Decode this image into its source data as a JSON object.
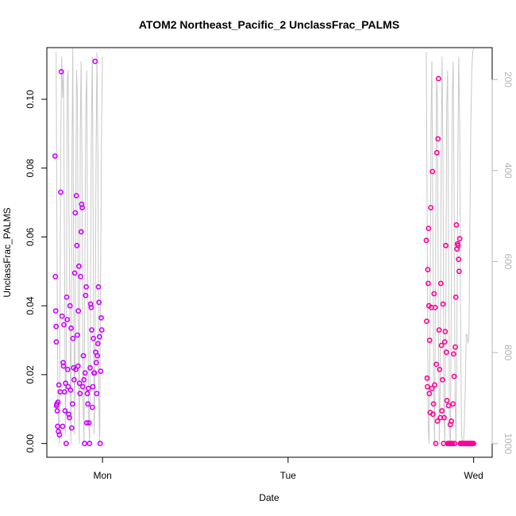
{
  "chart_data": {
    "type": "scatter",
    "title": "ATOM2 Northeast_Pacific_2 UnclassFrac_PALMS",
    "xlabel": "Date",
    "ylabel": "UnclassFrac_PALMS",
    "x_ticks": [
      "Mon",
      "Tue",
      "Wed"
    ],
    "x_tick_days": [
      0,
      1,
      2
    ],
    "xlim_days": [
      -0.3,
      2.1
    ],
    "ylim": [
      -0.004,
      0.115
    ],
    "y_ticks": [
      0.0,
      0.02,
      0.04,
      0.06,
      0.08,
      0.1
    ],
    "y_tick_labels": [
      "0.00",
      "0.02",
      "0.04",
      "0.06",
      "0.08",
      "0.10"
    ],
    "y2_ticks": [
      200,
      400,
      600,
      800,
      1000
    ],
    "y2_tick_labels": [
      "200",
      "400",
      "600",
      "800",
      "1000"
    ],
    "y2lim": [
      1030,
      130
    ],
    "grid": false,
    "colors": {
      "marker_primary": "#cc00ff",
      "marker_secondary": "#ff0099",
      "pressure_line": "#c8c8c8",
      "axis": "#000000",
      "secondary_axis": "#b4b4b4"
    },
    "series": [
      {
        "marker": "circle",
        "color": "#cc00ff",
        "x_days": [
          -0.256,
          -0.254,
          -0.252,
          -0.25,
          -0.249,
          -0.248,
          -0.246,
          -0.244,
          -0.242,
          -0.24,
          -0.238,
          -0.235,
          -0.232,
          -0.228,
          -0.225,
          -0.222,
          -0.218,
          -0.215,
          -0.212,
          -0.21,
          -0.208,
          -0.205,
          -0.202,
          -0.199,
          -0.196,
          -0.193,
          -0.19,
          -0.188,
          -0.185,
          -0.182,
          -0.178,
          -0.175,
          -0.172,
          -0.169,
          -0.166,
          -0.162,
          -0.159,
          -0.156,
          -0.153,
          -0.15,
          -0.147,
          -0.144,
          -0.141,
          -0.138,
          -0.135,
          -0.132,
          -0.13,
          -0.127,
          -0.124,
          -0.121,
          -0.118,
          -0.115,
          -0.112,
          -0.109,
          -0.106,
          -0.103,
          -0.1,
          -0.097,
          -0.094,
          -0.091,
          -0.088,
          -0.085,
          -0.082,
          -0.079,
          -0.076,
          -0.073,
          -0.07,
          -0.067,
          -0.064,
          -0.061,
          -0.058,
          -0.055,
          -0.052,
          -0.049,
          -0.046,
          -0.043,
          -0.04,
          -0.037,
          -0.034,
          -0.031,
          -0.028,
          -0.025,
          -0.022,
          -0.019,
          -0.016,
          -0.013,
          -0.01,
          -0.007,
          -0.004
        ],
        "y": [
          0.0835,
          0.0485,
          0.0385,
          0.034,
          0.0295,
          0.011,
          0.0115,
          0.0095,
          0.005,
          0.012,
          0.0035,
          0.017,
          0.0025,
          0.015,
          0.073,
          0.108,
          0.037,
          0.005,
          0.0235,
          0.0225,
          0.0345,
          0.015,
          0.0095,
          0.0175,
          0.0,
          0.0425,
          0.036,
          0.0215,
          0.0165,
          0.0085,
          0.0075,
          0.04,
          0.0155,
          0.0335,
          0.0045,
          0.0115,
          0.0305,
          0.022,
          0.0185,
          0.0495,
          0.067,
          0.0215,
          0.072,
          0.0575,
          0.0315,
          0.0225,
          0.0385,
          0.0515,
          0.0175,
          0.0145,
          0.0485,
          0.0615,
          0.0695,
          0.0685,
          0.0165,
          0.0255,
          0.0185,
          0.0,
          0.0205,
          0.043,
          0.0455,
          0.006,
          0.0145,
          0.0115,
          0.016,
          0.006,
          0.0,
          0.022,
          0.0405,
          0.0395,
          0.033,
          0.0105,
          0.0165,
          0.0305,
          0.0205,
          0.0205,
          0.111,
          0.0265,
          0.0235,
          0.0145,
          0.0255,
          0.029,
          0.0455,
          0.041,
          0.031,
          0.0,
          0.021,
          0.0365,
          0.033
        ]
      },
      {
        "marker": "circle",
        "color": "#ff0099",
        "x_days": [
          1.745,
          1.747,
          1.749,
          1.751,
          1.753,
          1.755,
          1.757,
          1.759,
          1.761,
          1.763,
          1.766,
          1.769,
          1.772,
          1.775,
          1.778,
          1.781,
          1.784,
          1.787,
          1.79,
          1.793,
          1.796,
          1.799,
          1.802,
          1.805,
          1.808,
          1.811,
          1.814,
          1.817,
          1.82,
          1.823,
          1.826,
          1.829,
          1.832,
          1.835,
          1.838,
          1.841,
          1.844,
          1.847,
          1.85,
          1.853,
          1.856,
          1.859,
          1.862,
          1.865,
          1.868,
          1.871,
          1.874,
          1.877,
          1.88,
          1.883,
          1.886,
          1.889,
          1.892,
          1.895,
          1.898,
          1.901,
          1.904,
          1.907,
          1.91,
          1.913,
          1.916,
          1.919,
          1.922,
          1.925,
          1.928,
          1.931,
          1.934,
          1.937,
          1.94,
          1.943,
          1.946,
          1.949,
          1.952,
          1.955,
          1.958,
          1.961,
          1.964,
          1.967,
          1.97,
          1.973,
          1.976,
          1.979,
          1.982,
          1.985,
          1.988,
          1.991,
          1.994,
          1.997,
          2.0
        ],
        "y": [
          0.059,
          0.0355,
          0.019,
          0.0165,
          0.0505,
          0.0465,
          0.0625,
          0.04,
          0.0145,
          0.03,
          0.009,
          0.0685,
          0.0395,
          0.016,
          0.079,
          0.0085,
          0.0115,
          0.0435,
          0.017,
          0.0395,
          0.0,
          0.023,
          0.0845,
          0.0065,
          0.0885,
          0.106,
          0.033,
          0.0215,
          0.0075,
          0.0465,
          0.0285,
          0.0095,
          0.0185,
          0.0405,
          0.0,
          0.0075,
          0.0295,
          0.0325,
          0.0575,
          0.0265,
          0.0125,
          0.0,
          0.0,
          0.011,
          0.0,
          0.0,
          0.0055,
          0.0,
          0.0065,
          0.0,
          0.0,
          0.0115,
          0.026,
          0.0195,
          0.0,
          0.028,
          0.0425,
          0.0635,
          0.0565,
          0.058,
          0.0575,
          0.0535,
          0.05,
          0.0595,
          0.0,
          0.0,
          0.0,
          0.0,
          0.0,
          0.0,
          0.0,
          0.0,
          0.0,
          0.0,
          0.0,
          0.0,
          0.0,
          0.0,
          0.0,
          0.0,
          0.0,
          0.0,
          0.0,
          0.0,
          0.0,
          0.0,
          0.0,
          0.0,
          0.0
        ]
      },
      {
        "name": "",
        "type": "line",
        "axis": "right",
        "color": "#c8c8c8",
        "segments": [
          {
            "x_days": [
              -0.25,
              -0.245,
              -0.24,
              -0.232,
              -0.225,
              -0.22,
              -0.215,
              -0.21,
              -0.205,
              -0.2,
              -0.195,
              -0.19,
              -0.185,
              -0.18,
              -0.175,
              -0.17,
              -0.165,
              -0.16,
              -0.155,
              -0.15,
              -0.145,
              -0.14,
              -0.135,
              -0.13,
              -0.125,
              -0.12,
              -0.115,
              -0.11,
              -0.105,
              -0.1,
              -0.095,
              -0.09,
              -0.085,
              -0.08,
              -0.075,
              -0.07,
              -0.065,
              -0.06,
              -0.055,
              -0.05,
              -0.045,
              -0.04,
              -0.035,
              -0.03,
              -0.025,
              -0.02,
              -0.015,
              -0.01,
              -0.005,
              0.0
            ],
            "y": [
              140,
              620,
              930,
              1000,
              340,
              150,
              240,
              180,
              560,
              980,
              820,
              200,
              180,
              520,
              760,
              1000,
              380,
              130,
              700,
              980,
              560,
              180,
              240,
              800,
              1000,
              320,
              160,
              420,
              900,
              1000,
              620,
              260,
              180,
              600,
              930,
              1000,
              720,
              300,
              150,
              540,
              980,
              820,
              400,
              140,
              360,
              900,
              1000,
              600,
              300,
              150
            ]
          },
          {
            "x_days": [
              1.745,
              1.75,
              1.755,
              1.76,
              1.765,
              1.77,
              1.775,
              1.78,
              1.785,
              1.79,
              1.795,
              1.8,
              1.805,
              1.81,
              1.815,
              1.82,
              1.825,
              1.83,
              1.835,
              1.84,
              1.845,
              1.85,
              1.855,
              1.86,
              1.865,
              1.87,
              1.875,
              1.88,
              1.885,
              1.89,
              1.895,
              1.9,
              1.905,
              1.91,
              1.915,
              1.92,
              1.925,
              1.93,
              1.935,
              1.94,
              1.945,
              1.95,
              1.955,
              1.96,
              1.965,
              1.97,
              1.975,
              1.98,
              1.985,
              1.99,
              1.995,
              2.0
            ],
            "y": [
              140,
              540,
              960,
              1000,
              760,
              300,
              160,
              500,
              900,
              1000,
              620,
              200,
              240,
              720,
              1000,
              860,
              360,
              150,
              420,
              920,
              1000,
              700,
              260,
              180,
              560,
              980,
              1000,
              640,
              240,
              160,
              480,
              900,
              1000,
              760,
              360,
              150,
              300,
              760,
              980,
              1000,
              1000,
              960,
              880,
              760,
              760,
              780,
              760,
              520,
              300,
              180,
              140,
              130
            ]
          }
        ]
      }
    ]
  }
}
